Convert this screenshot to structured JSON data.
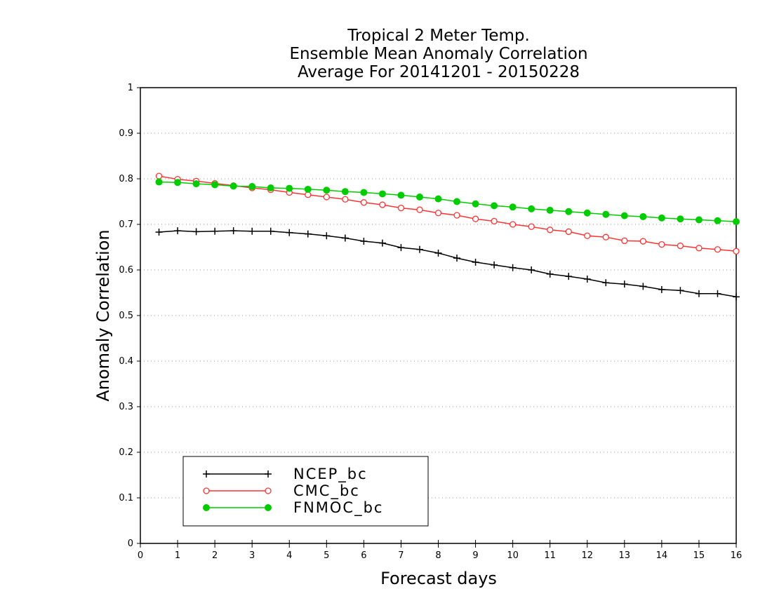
{
  "chart_data": {
    "type": "line",
    "title_lines": [
      "Tropical 2 Meter Temp.",
      "Ensemble Mean Anomaly Correlation",
      "Average For 20141201 - 20150228"
    ],
    "xlabel": "Forecast days",
    "ylabel": "Anomaly Correlation",
    "xlim": [
      0,
      16
    ],
    "ylim": [
      0,
      1
    ],
    "xticks": [
      "0",
      "1",
      "2",
      "3",
      "4",
      "5",
      "6",
      "7",
      "8",
      "9",
      "10",
      "11",
      "12",
      "13",
      "14",
      "15",
      "16"
    ],
    "yticks": [
      "0",
      "0.1",
      "0.2",
      "0.3",
      "0.4",
      "0.5",
      "0.6",
      "0.7",
      "0.8",
      "0.9",
      "1"
    ],
    "grid": "horizontal dotted",
    "legend_position": "bottom-left",
    "x": [
      0.5,
      1,
      1.5,
      2,
      2.5,
      3,
      3.5,
      4,
      4.5,
      5,
      5.5,
      6,
      6.5,
      7,
      7.5,
      8,
      8.5,
      9,
      9.5,
      10,
      10.5,
      11,
      11.5,
      12,
      12.5,
      13,
      13.5,
      14,
      14.5,
      15,
      15.5,
      16
    ],
    "series": [
      {
        "name": "NCEP_bc",
        "color": "#000000",
        "marker": "plus",
        "values": [
          0.683,
          0.686,
          0.684,
          0.685,
          0.686,
          0.685,
          0.685,
          0.682,
          0.679,
          0.675,
          0.67,
          0.663,
          0.659,
          0.649,
          0.645,
          0.637,
          0.626,
          0.617,
          0.611,
          0.605,
          0.6,
          0.591,
          0.586,
          0.58,
          0.572,
          0.569,
          0.564,
          0.557,
          0.555,
          0.548,
          0.548,
          0.541
        ]
      },
      {
        "name": "CMC_bc",
        "color": "#ff3333",
        "marker": "open-circle",
        "values": [
          0.806,
          0.799,
          0.795,
          0.79,
          0.785,
          0.78,
          0.776,
          0.77,
          0.765,
          0.76,
          0.755,
          0.748,
          0.743,
          0.736,
          0.732,
          0.725,
          0.72,
          0.712,
          0.707,
          0.7,
          0.695,
          0.688,
          0.684,
          0.675,
          0.672,
          0.664,
          0.663,
          0.656,
          0.653,
          0.648,
          0.645,
          0.641
        ]
      },
      {
        "name": "FNMOC_bc",
        "color": "#00cc00",
        "marker": "filled-circle",
        "values": [
          0.793,
          0.792,
          0.789,
          0.787,
          0.784,
          0.783,
          0.78,
          0.779,
          0.777,
          0.775,
          0.772,
          0.77,
          0.767,
          0.764,
          0.76,
          0.756,
          0.75,
          0.745,
          0.741,
          0.738,
          0.734,
          0.731,
          0.728,
          0.725,
          0.722,
          0.719,
          0.717,
          0.714,
          0.712,
          0.71,
          0.708,
          0.706
        ]
      }
    ]
  }
}
